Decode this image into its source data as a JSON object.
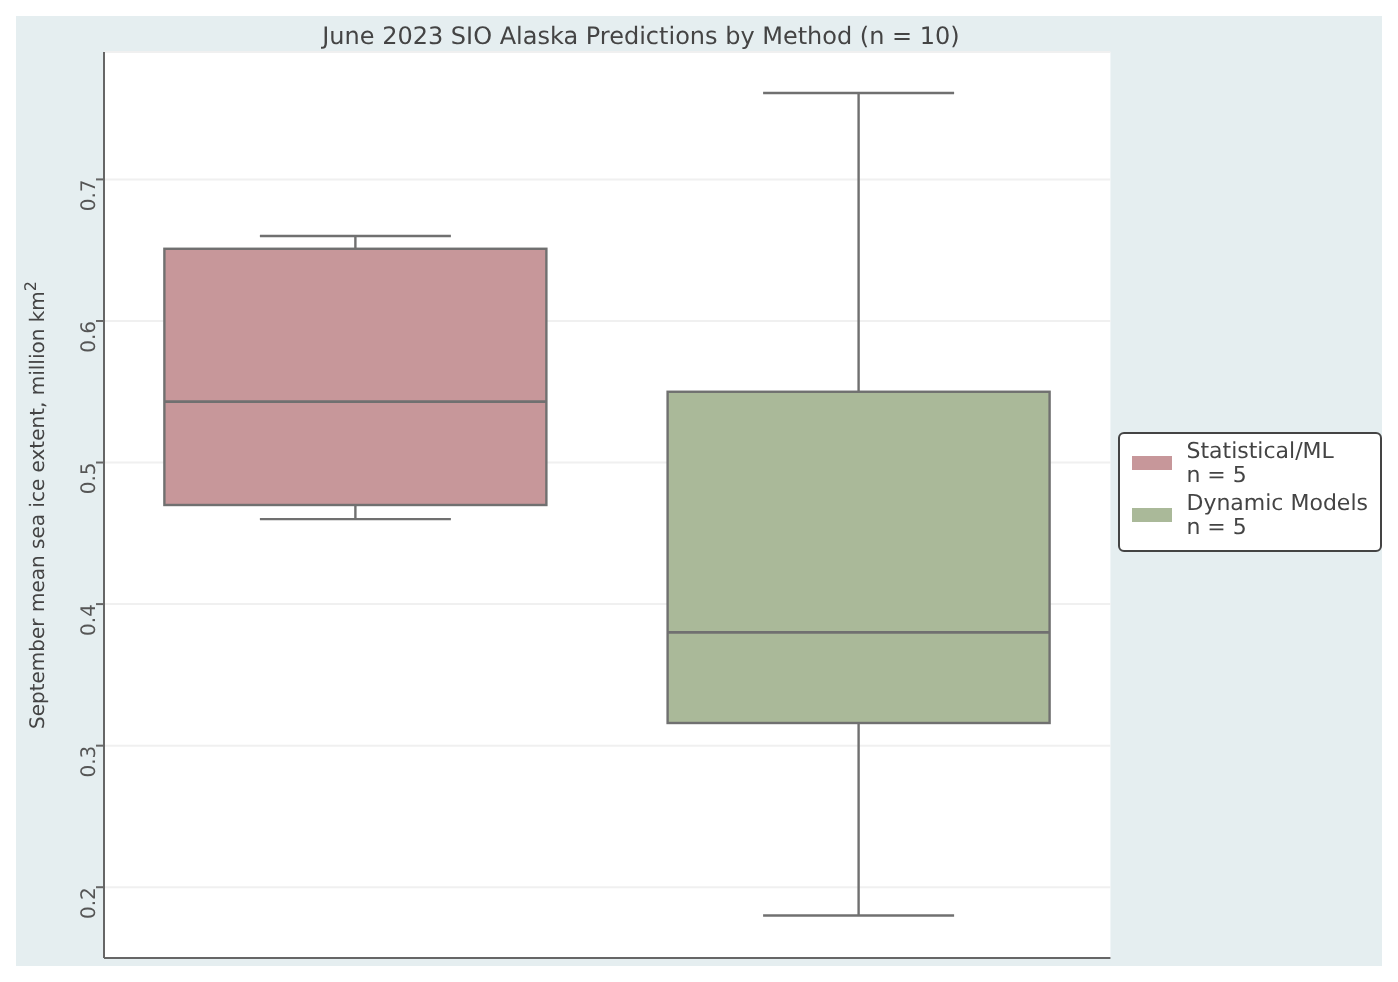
{
  "chart_data": {
    "type": "box",
    "title": "June 2023 SIO Alaska Predictions by Method (n = 10)",
    "ylabel": "September mean sea ice extent, million km$^{2}$",
    "categories": [
      null,
      null
    ],
    "series": [
      {
        "name": "Statistical/ML\nn = 5",
        "color": "#c7979a",
        "boxes": [
          {
            "low": 0.46,
            "q1": 0.47,
            "median": 0.543,
            "q3": 0.651,
            "high": 0.66
          },
          null
        ]
      },
      {
        "name": "Dynamic Models\nn = 5",
        "color": "#aab999",
        "boxes": [
          null,
          {
            "low": 0.18,
            "q1": 0.316,
            "median": 0.38,
            "q3": 0.55,
            "high": 0.761
          }
        ]
      }
    ],
    "ylim": [
      0.15,
      0.79
    ],
    "yticks": [
      0.2,
      0.3,
      0.4,
      0.5,
      0.6,
      0.7
    ],
    "grid": "y",
    "legend": "right",
    "tick_labels": "y"
  }
}
